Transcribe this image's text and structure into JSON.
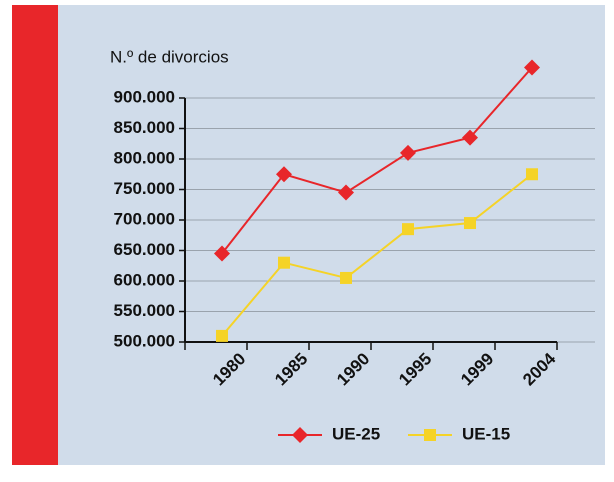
{
  "chart_data": {
    "type": "line",
    "y_label": "N.º de divorcios",
    "categories": [
      "1980",
      "1985",
      "1990",
      "1995",
      "1999",
      "2004"
    ],
    "series": [
      {
        "name": "UE-25",
        "color": "#e8262a",
        "marker": "diamond",
        "values": [
          645,
          775,
          745,
          810,
          835,
          950
        ]
      },
      {
        "name": "UE-15",
        "color": "#f5d327",
        "marker": "square",
        "values": [
          510,
          630,
          605,
          685,
          695,
          775
        ]
      }
    ],
    "ylim": [
      500,
      900
    ],
    "yticks": [
      {
        "value": 500,
        "label": "500.000"
      },
      {
        "value": 550,
        "label": "550.000"
      },
      {
        "value": 600,
        "label": "600.000"
      },
      {
        "value": 650,
        "label": "650.000"
      },
      {
        "value": 700,
        "label": "700.000"
      },
      {
        "value": 750,
        "label": "750.000"
      },
      {
        "value": 800,
        "label": "800.000"
      },
      {
        "value": 850,
        "label": "850.000"
      },
      {
        "value": 900,
        "label": "900.000"
      }
    ],
    "grid": true,
    "legend": "bottom"
  }
}
